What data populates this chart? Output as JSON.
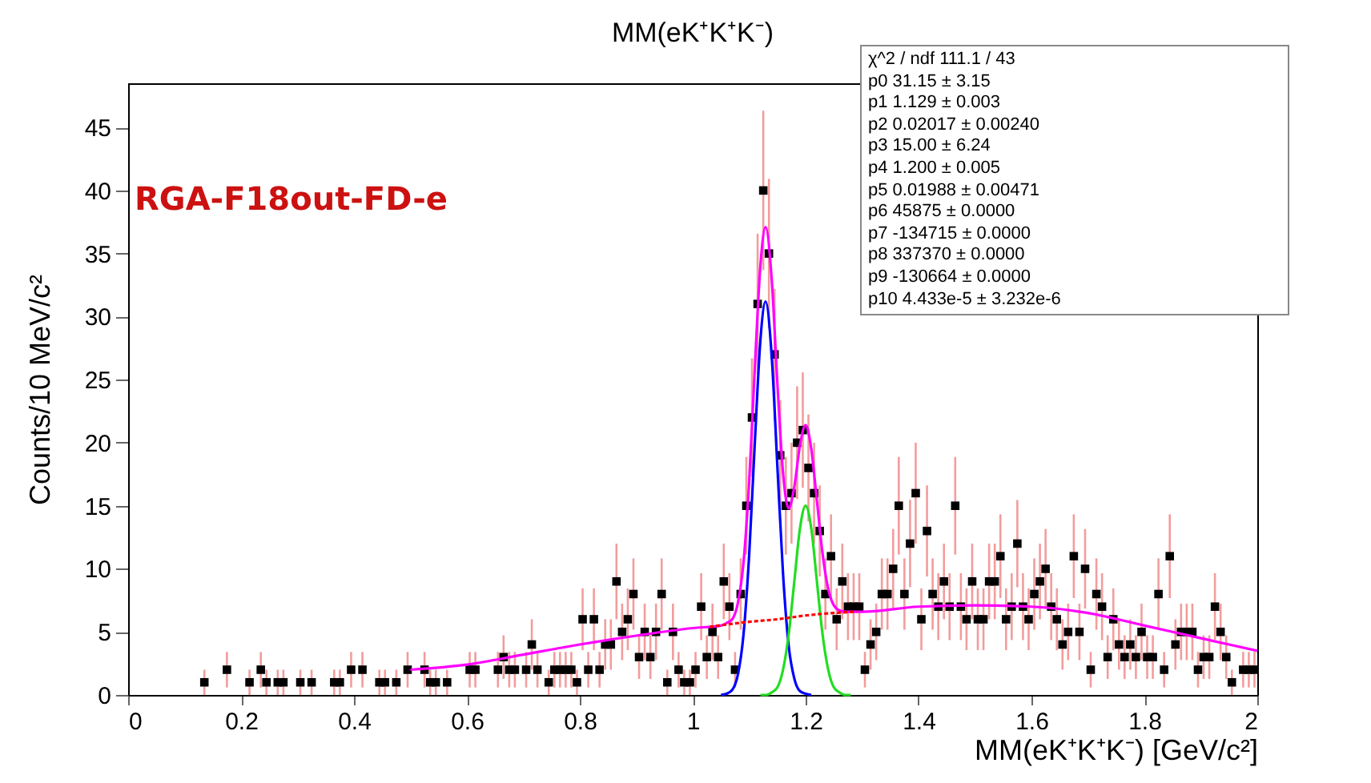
{
  "chart_data": {
    "type": "scatter",
    "title": "MM(eK⁺K⁺K⁻)",
    "xlabel": "MM(eK⁺K⁺K⁻) [GeV/c²]",
    "ylabel": "Counts/10 MeV/c²",
    "xlim": [
      0,
      2
    ],
    "xticks": [
      0,
      0.2,
      0.4,
      0.6,
      0.8,
      1,
      1.2,
      1.4,
      1.6,
      1.8,
      2
    ],
    "ylim": [
      0,
      48.5
    ],
    "yticks": [
      0,
      5,
      10,
      15,
      20,
      25,
      30,
      35,
      40,
      45
    ],
    "grid": false,
    "annotations": [
      "RGA-F18out-FD-e",
      "χ^2 / ndf   111.1 / 43",
      "p0   31.15 ± 3.15",
      "p1   1.129 ± 0.003",
      "p2   0.02017 ± 0.00240",
      "p3   15.00 ± 6.24",
      "p4   1.200 ± 0.005",
      "p5   0.01988 ± 0.00471",
      "p6   45875 ± 0.0000",
      "p7   -134715 ± 0.0000",
      "p8   337370 ± 0.0000",
      "p9   -130664 ± 0.0000",
      "p10   4.433e-5 ± 3.232e-6"
    ],
    "series": [
      {
        "marker": "square",
        "color": "#000000",
        "x": [
          0.135,
          0.175,
          0.215,
          0.235,
          0.245,
          0.265,
          0.275,
          0.305,
          0.325,
          0.365,
          0.375,
          0.395,
          0.415,
          0.445,
          0.455,
          0.475,
          0.495,
          0.525,
          0.535,
          0.545,
          0.565,
          0.605,
          0.615,
          0.655,
          0.665,
          0.675,
          0.685,
          0.705,
          0.715,
          0.725,
          0.745,
          0.755,
          0.765,
          0.775,
          0.785,
          0.795,
          0.805,
          0.815,
          0.825,
          0.835,
          0.845,
          0.855,
          0.865,
          0.875,
          0.885,
          0.895,
          0.905,
          0.915,
          0.925,
          0.935,
          0.945,
          0.955,
          0.965,
          0.975,
          0.985,
          0.995,
          1.005,
          1.015,
          1.025,
          1.035,
          1.045,
          1.055,
          1.065,
          1.075,
          1.085,
          1.095,
          1.105,
          1.115,
          1.125,
          1.135,
          1.145,
          1.155,
          1.165,
          1.175,
          1.185,
          1.195,
          1.205,
          1.215,
          1.225,
          1.235,
          1.245,
          1.255,
          1.265,
          1.275,
          1.285,
          1.295,
          1.305,
          1.315,
          1.325,
          1.335,
          1.345,
          1.355,
          1.365,
          1.375,
          1.385,
          1.395,
          1.405,
          1.415,
          1.425,
          1.435,
          1.445,
          1.455,
          1.465,
          1.475,
          1.485,
          1.495,
          1.505,
          1.515,
          1.525,
          1.535,
          1.545,
          1.555,
          1.565,
          1.575,
          1.585,
          1.595,
          1.605,
          1.615,
          1.625,
          1.635,
          1.645,
          1.655,
          1.665,
          1.675,
          1.685,
          1.695,
          1.705,
          1.715,
          1.725,
          1.735,
          1.745,
          1.755,
          1.765,
          1.775,
          1.785,
          1.795,
          1.805,
          1.815,
          1.825,
          1.835,
          1.845,
          1.855,
          1.865,
          1.875,
          1.885,
          1.895,
          1.905,
          1.915,
          1.925,
          1.935,
          1.945,
          1.955,
          1.975,
          1.985,
          1.995
        ],
        "values": [
          1,
          2,
          1,
          2,
          1,
          1,
          1,
          1,
          1,
          1,
          1,
          2,
          2,
          1,
          1,
          1,
          2,
          2,
          1,
          1,
          1,
          2,
          2,
          2,
          3,
          2,
          2,
          2,
          4,
          2,
          1,
          2,
          2,
          2,
          2,
          1,
          6,
          2,
          6,
          2,
          4,
          4,
          9,
          5,
          6,
          8,
          3,
          5,
          3,
          5,
          8,
          1,
          5,
          2,
          1,
          1,
          2,
          7,
          3,
          5,
          3,
          9,
          7,
          2,
          8,
          15,
          22,
          31,
          40,
          35,
          27,
          19,
          15,
          16,
          20,
          21,
          18,
          16,
          13,
          8,
          11,
          6,
          9,
          7,
          7,
          7,
          2,
          4,
          5,
          8,
          8,
          10,
          15,
          8,
          12,
          16,
          6,
          13,
          8,
          7,
          9,
          7,
          15,
          7,
          6,
          9,
          6,
          6,
          9,
          9,
          11,
          6,
          7,
          12,
          7,
          6,
          8,
          9,
          10,
          7,
          6,
          4,
          5,
          11,
          5,
          10,
          2,
          8,
          7,
          3,
          6,
          4,
          3,
          4,
          3,
          5,
          3,
          3,
          8,
          2,
          11,
          4,
          5,
          5,
          5,
          2,
          3,
          3,
          7,
          5,
          3,
          1,
          2,
          2,
          2
        ],
        "errors": [
          1,
          1.41,
          1,
          1.41,
          1,
          1,
          1,
          1,
          1,
          1,
          1,
          1.41,
          1.41,
          1,
          1,
          1,
          1.41,
          1.41,
          1,
          1,
          1,
          1.41,
          1.41,
          1.41,
          1.73,
          1.41,
          1.41,
          1.41,
          2,
          1.41,
          1,
          1.41,
          1.41,
          1.41,
          1.41,
          1,
          2.45,
          1.41,
          2.45,
          1.41,
          2,
          2,
          3,
          2.24,
          2.45,
          2.83,
          1.73,
          2.24,
          1.73,
          2.24,
          2.83,
          1,
          2.24,
          1.41,
          1,
          1,
          1.41,
          2.65,
          1.73,
          2.24,
          1.73,
          3,
          2.65,
          1.41,
          2.83,
          3.87,
          4.69,
          5.57,
          6.32,
          5.92,
          5.2,
          4.36,
          3.87,
          4,
          4.47,
          4.58,
          4.24,
          4,
          3.61,
          2.83,
          3.32,
          2.45,
          3,
          2.65,
          2.65,
          2.65,
          1.41,
          2,
          2.24,
          2.83,
          2.83,
          3.16,
          3.87,
          2.83,
          3.46,
          4,
          2.45,
          3.61,
          2.83,
          2.65,
          3,
          2.65,
          3.87,
          2.65,
          2.45,
          3,
          2.45,
          2.45,
          3,
          3,
          3.32,
          2.45,
          2.65,
          3.46,
          2.65,
          2.45,
          2.83,
          3,
          3.16,
          2.65,
          2.45,
          2,
          2.24,
          3.32,
          2.24,
          3.16,
          1.41,
          2.83,
          2.65,
          1.73,
          2.45,
          2,
          1.73,
          2,
          1.73,
          2.24,
          1.73,
          1.73,
          2.83,
          1.41,
          3.32,
          2,
          2.24,
          2.24,
          2.24,
          1.41,
          1.73,
          1.73,
          2.65,
          2.24,
          1.73,
          1,
          1.41,
          1.41,
          1.41
        ]
      },
      {
        "type": "line",
        "color": "#0000ff",
        "line_style": "solid",
        "x": [
          1.05,
          1.06,
          1.07,
          1.08,
          1.09,
          1.1,
          1.11,
          1.12,
          1.129,
          1.14,
          1.15,
          1.16,
          1.17,
          1.18,
          1.19,
          1.2,
          1.21
        ],
        "values": [
          0,
          0.1,
          0.4,
          1.6,
          4.8,
          11.1,
          20.0,
          28.2,
          31.2,
          26.8,
          18.1,
          9.6,
          3.9,
          1.3,
          0.3,
          0.1,
          0
        ]
      },
      {
        "type": "line",
        "color": "#22dd22",
        "line_style": "solid",
        "x": [
          1.12,
          1.13,
          1.14,
          1.15,
          1.16,
          1.17,
          1.18,
          1.19,
          1.2,
          1.21,
          1.22,
          1.23,
          1.24,
          1.25,
          1.26,
          1.27,
          1.28
        ],
        "values": [
          0,
          0,
          0.2,
          0.6,
          2.0,
          4.8,
          9.0,
          13.2,
          15,
          13.2,
          9.0,
          4.8,
          2.0,
          0.6,
          0.2,
          0,
          0
        ]
      },
      {
        "type": "line",
        "color": "#ff00ff",
        "line_style": "solid",
        "x": [
          0.5,
          0.6,
          0.7,
          0.8,
          0.9,
          1.0,
          1.05,
          1.06,
          1.07,
          1.08,
          1.09,
          1.1,
          1.11,
          1.12,
          1.129,
          1.14,
          1.15,
          1.16,
          1.17,
          1.18,
          1.19,
          1.2,
          1.21,
          1.22,
          1.23,
          1.24,
          1.25,
          1.26,
          1.27,
          1.3,
          1.4,
          1.5,
          1.6,
          1.7,
          1.8,
          1.9,
          2.0
        ],
        "values": [
          2.0,
          2.4,
          3.2,
          4.0,
          4.7,
          5.3,
          5.5,
          5.7,
          6.0,
          7.3,
          10.5,
          16.9,
          25.9,
          34.1,
          37.1,
          32.9,
          24.7,
          17.6,
          14.8,
          16.5,
          19.8,
          21.4,
          19.5,
          15.4,
          11.2,
          8.4,
          7.1,
          6.7,
          6.6,
          6.6,
          7.0,
          7.1,
          7.0,
          6.5,
          5.5,
          4.5,
          3.5
        ]
      },
      {
        "type": "line",
        "color": "#ff0000",
        "line_style": "dashed",
        "x": [
          1.03,
          1.1,
          1.15,
          1.2,
          1.25,
          1.29
        ],
        "values": [
          5.4,
          5.8,
          6.0,
          6.3,
          6.5,
          6.6
        ]
      }
    ]
  }
}
